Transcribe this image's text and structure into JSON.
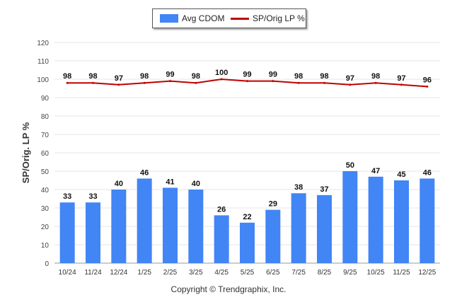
{
  "chart_data": {
    "type": "bar+line",
    "categories": [
      "10/24",
      "11/24",
      "12/24",
      "1/25",
      "2/25",
      "3/25",
      "4/25",
      "5/25",
      "6/25",
      "7/25",
      "8/25",
      "9/25",
      "10/25",
      "11/25",
      "12/25"
    ],
    "series": [
      {
        "name": "Avg CDOM",
        "type": "bar",
        "color": "#4285f4",
        "values": [
          33,
          33,
          40,
          46,
          41,
          40,
          26,
          22,
          29,
          38,
          37,
          50,
          47,
          45,
          46
        ]
      },
      {
        "name": "SP/Orig LP %",
        "type": "line",
        "color": "#c00000",
        "values": [
          98,
          98,
          97,
          98,
          99,
          98,
          100,
          99,
          99,
          98,
          98,
          97,
          98,
          97,
          96
        ]
      }
    ],
    "ylabel": "SP/Orig. LP %",
    "ylim": [
      0,
      120
    ],
    "yticks": [
      0,
      10,
      20,
      30,
      40,
      50,
      60,
      70,
      80,
      90,
      100,
      110,
      120
    ],
    "grid": true,
    "legend_position": "top-center"
  },
  "footer": {
    "copyright": "Copyright © Trendgraphix, Inc."
  }
}
